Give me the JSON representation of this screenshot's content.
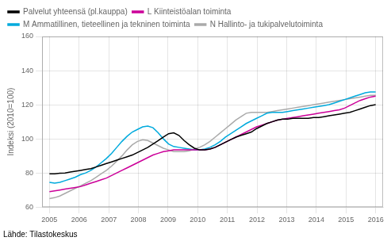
{
  "chart_data": {
    "type": "line",
    "ylabel": "Indeksi (2010=100)",
    "source": "Lähde: Tilastokeskus",
    "x": [
      2005,
      2005.1746,
      2005.3492,
      2005.5238,
      2005.6984,
      2005.873,
      2006.0476,
      2006.2222,
      2006.3968,
      2006.5714,
      2006.746,
      2006.9206,
      2007.0952,
      2007.2698,
      2007.4444,
      2007.619,
      2007.7937,
      2007.9683,
      2008.1429,
      2008.3175,
      2008.4921,
      2008.6667,
      2008.8413,
      2009.0159,
      2009.1905,
      2009.3651,
      2009.5397,
      2009.7143,
      2009.8889,
      2010.0635,
      2010.2381,
      2010.4127,
      2010.5873,
      2010.7619,
      2010.9365,
      2011.1111,
      2011.2857,
      2011.4603,
      2011.6349,
      2011.8095,
      2011.9841,
      2012.1587,
      2012.3333,
      2012.5079,
      2012.6825,
      2012.8571,
      2013.0317,
      2013.2063,
      2013.381,
      2013.5556,
      2013.7302,
      2013.9048,
      2014.0794,
      2014.254,
      2014.4286,
      2014.6032,
      2014.7778,
      2014.9524,
      2015.127,
      2015.3016,
      2015.4762,
      2015.6508,
      2015.8254,
      2016
    ],
    "xlim": [
      2004.75,
      2016.25
    ],
    "xticks": [
      2005,
      2006,
      2007,
      2008,
      2009,
      2010,
      2011,
      2012,
      2013,
      2014,
      2015,
      2016
    ],
    "ylim": [
      60,
      160
    ],
    "yticks": [
      60,
      80,
      100,
      120,
      140,
      160
    ],
    "grid": true,
    "legend": "upper left",
    "series": [
      {
        "name": "Palvelut yhteensä (pl.kauppa)",
        "color": "#000000",
        "values": [
          79.5,
          79.5,
          79.8,
          80.0,
          80.5,
          81.0,
          81.5,
          82.0,
          82.5,
          83.5,
          84.5,
          85.5,
          86.5,
          87.5,
          88.5,
          89.5,
          90.5,
          92.0,
          93.5,
          95.0,
          97.0,
          99.0,
          101.0,
          103.0,
          103.5,
          102.0,
          99.0,
          96.5,
          94.5,
          93.5,
          93.5,
          94.0,
          95.0,
          96.5,
          98.0,
          99.5,
          101.0,
          102.0,
          103.0,
          104.0,
          106.0,
          107.5,
          109.0,
          110.0,
          111.0,
          111.5,
          111.5,
          112.0,
          112.0,
          112.0,
          112.0,
          112.5,
          112.5,
          113.0,
          113.5,
          114.0,
          114.5,
          115.0,
          115.5,
          116.5,
          117.5,
          118.5,
          119.5,
          120.0
        ]
      },
      {
        "name": "L Kiinteistöalan toiminta",
        "color": "#cc0099",
        "values": [
          69.0,
          69.5,
          70.0,
          70.5,
          71.0,
          71.5,
          72.0,
          73.0,
          74.0,
          75.0,
          76.0,
          77.0,
          78.5,
          80.0,
          81.5,
          83.0,
          84.5,
          86.0,
          87.5,
          89.0,
          90.5,
          91.5,
          92.5,
          93.0,
          93.5,
          93.5,
          93.5,
          93.5,
          93.5,
          93.5,
          93.5,
          94.0,
          95.0,
          96.5,
          98.0,
          99.5,
          101.0,
          102.5,
          104.0,
          105.5,
          107.0,
          108.0,
          109.0,
          110.0,
          111.0,
          111.5,
          112.0,
          112.5,
          113.0,
          113.5,
          114.0,
          114.5,
          115.0,
          115.5,
          116.0,
          116.5,
          117.0,
          118.0,
          119.5,
          121.0,
          122.5,
          123.5,
          124.5,
          125.0
        ]
      },
      {
        "name": "M Ammatillinen, tieteellinen ja tekninen toiminta",
        "color": "#00aadd",
        "values": [
          74.5,
          74.0,
          74.5,
          75.5,
          76.5,
          77.5,
          79.0,
          80.0,
          81.5,
          83.5,
          86.0,
          88.5,
          91.5,
          95.0,
          98.5,
          101.5,
          104.0,
          105.5,
          107.0,
          107.5,
          106.5,
          103.5,
          100.0,
          97.0,
          95.5,
          95.0,
          94.5,
          94.0,
          93.5,
          93.5,
          94.0,
          95.0,
          96.5,
          98.5,
          101.0,
          103.0,
          105.0,
          107.0,
          109.0,
          110.5,
          112.0,
          113.5,
          115.0,
          115.5,
          115.5,
          115.5,
          116.0,
          116.5,
          117.0,
          117.5,
          118.0,
          118.5,
          119.0,
          119.5,
          120.0,
          121.0,
          122.0,
          123.0,
          124.0,
          125.0,
          126.0,
          127.0,
          127.5,
          127.5
        ]
      },
      {
        "name": "N Hallinto- ja tukipalvelutoiminta",
        "color": "#aaaaaa",
        "values": [
          65.0,
          65.5,
          66.5,
          68.0,
          69.5,
          71.0,
          72.5,
          74.0,
          75.5,
          77.5,
          79.5,
          81.5,
          84.0,
          87.0,
          90.0,
          93.5,
          96.5,
          98.5,
          99.5,
          99.0,
          97.5,
          96.0,
          94.5,
          93.5,
          92.5,
          92.5,
          92.5,
          93.0,
          94.0,
          95.0,
          96.5,
          98.5,
          101.0,
          103.5,
          106.0,
          108.5,
          111.0,
          113.0,
          115.0,
          115.5,
          115.5,
          115.5,
          115.5,
          116.0,
          116.5,
          117.0,
          117.5,
          118.0,
          118.5,
          119.0,
          119.5,
          120.0,
          120.5,
          121.0,
          121.5,
          122.0,
          122.5,
          123.0,
          123.5,
          124.0,
          124.5,
          125.0,
          125.5,
          125.5
        ]
      }
    ]
  }
}
